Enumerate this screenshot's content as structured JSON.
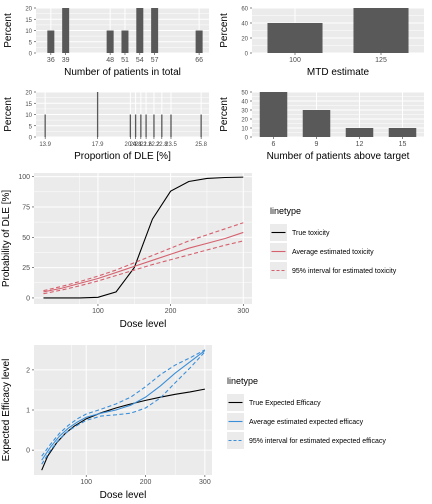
{
  "colors": {
    "panel": "#ebebeb",
    "grid": "#ffffff",
    "bar": "#595959",
    "true": "#000000",
    "red": "#d6606e",
    "blue": "#3a8fd9"
  },
  "chart_data": [
    {
      "id": "patients",
      "type": "bar",
      "xlabel": "Number of patients in total",
      "ylabel": "Percent",
      "xlim": [
        33,
        68
      ],
      "ylim": [
        0,
        20
      ],
      "yticks": [
        0,
        5,
        10,
        15,
        20
      ],
      "xtick_labels": [
        36,
        39,
        48,
        51,
        54,
        57,
        66
      ],
      "x": [
        36,
        39,
        48,
        51,
        54,
        57,
        66
      ],
      "values": [
        10,
        20,
        10,
        10,
        20,
        20,
        10
      ]
    },
    {
      "id": "mtd",
      "type": "bar",
      "xlabel": "MTD estimate",
      "ylabel": "Percent",
      "ylim": [
        0,
        60
      ],
      "yticks": [
        0,
        20,
        40,
        60
      ],
      "categories": [
        "100",
        "125"
      ],
      "values": [
        40,
        60
      ]
    },
    {
      "id": "dle",
      "type": "bar",
      "xlabel": "Proportion of DLE [%]",
      "ylabel": "Percent",
      "xlim": [
        13.2,
        26.4
      ],
      "ylim": [
        0,
        20
      ],
      "yticks": [
        0,
        5,
        10,
        15,
        20
      ],
      "xtick_labels": [
        "13.9",
        "17.9",
        "20.4",
        "20.8",
        "21.2",
        "21.6",
        "22.2",
        "22.8",
        "23.5",
        "25.8"
      ],
      "x": [
        13.9,
        17.9,
        20.4,
        20.8,
        21.2,
        21.6,
        22.2,
        22.8,
        23.5,
        25.8
      ],
      "values": [
        10,
        20,
        10,
        10,
        10,
        10,
        10,
        10,
        10,
        10
      ]
    },
    {
      "id": "above",
      "type": "bar",
      "xlabel": "Number of patients above target",
      "ylabel": "Percent",
      "ylim": [
        0,
        50
      ],
      "yticks": [
        0,
        10,
        20,
        30,
        40,
        50
      ],
      "categories": [
        "6",
        "9",
        "12",
        "15"
      ],
      "values": [
        50,
        30,
        10,
        10
      ]
    },
    {
      "id": "toxicity",
      "type": "line",
      "xlabel": "Dose level",
      "ylabel": "Probability of DLE [%]",
      "xlim": [
        12,
        312
      ],
      "ylim": [
        -5,
        103
      ],
      "xticks": [
        100,
        200,
        300
      ],
      "yticks": [
        0,
        25,
        50,
        75,
        100
      ],
      "legend": {
        "title": "linetype",
        "position": "right"
      },
      "series": [
        {
          "name": "True toxicity",
          "style": "solid",
          "color": "true",
          "x": [
            25,
            50,
            75,
            100,
            125,
            150,
            175,
            200,
            225,
            250,
            275,
            300
          ],
          "y": [
            0,
            0,
            0,
            0.5,
            5,
            25,
            65,
            88,
            96,
            98.5,
            99.3,
            99.6
          ]
        },
        {
          "name": "Average estimated toxicity",
          "style": "solid",
          "color": "red",
          "x": [
            25,
            50,
            75,
            100,
            125,
            150,
            175,
            200,
            225,
            250,
            275,
            300
          ],
          "y": [
            5,
            8,
            12,
            16,
            21,
            26,
            31,
            36,
            41,
            45,
            49,
            54
          ]
        },
        {
          "name": "95% interval for estimated toxicity",
          "style": "dashed",
          "color": "red",
          "x": [
            25,
            50,
            75,
            100,
            125,
            150,
            175,
            200,
            225,
            250,
            275,
            300
          ],
          "y": [
            6,
            9.5,
            13.5,
            18,
            23,
            29,
            35,
            41,
            47,
            52,
            57,
            62
          ]
        },
        {
          "name": "",
          "style": "dashed",
          "color": "red",
          "x": [
            25,
            50,
            75,
            100,
            125,
            150,
            175,
            200,
            225,
            250,
            275,
            300
          ],
          "y": [
            3.5,
            6.5,
            10,
            14,
            18.5,
            23,
            27.5,
            31.5,
            35.5,
            39.5,
            43.5,
            47
          ]
        }
      ]
    },
    {
      "id": "efficacy",
      "type": "line",
      "xlabel": "Dose level",
      "ylabel": "Expected Efficacy level",
      "xlim": [
        12,
        312
      ],
      "ylim": [
        -0.62,
        2.62
      ],
      "xticks": [
        100,
        200,
        300
      ],
      "yticks": [
        0,
        1,
        2
      ],
      "legend": {
        "title": "linetype",
        "position": "right"
      },
      "series": [
        {
          "name": "True Expected Efficacy",
          "style": "solid",
          "color": "true",
          "x": [
            25,
            35,
            50,
            65,
            80,
            100,
            125,
            150,
            175,
            200,
            225,
            250,
            275,
            300
          ],
          "y": [
            -0.5,
            -0.15,
            0.18,
            0.42,
            0.6,
            0.78,
            0.93,
            1.05,
            1.15,
            1.24,
            1.32,
            1.39,
            1.45,
            1.52
          ]
        },
        {
          "name": "Average estimated expected efficacy",
          "style": "solid",
          "color": "blue",
          "x": [
            25,
            40,
            55,
            70,
            85,
            100,
            125,
            150,
            175,
            200,
            225,
            250,
            275,
            300
          ],
          "y": [
            -0.25,
            0.08,
            0.35,
            0.55,
            0.7,
            0.82,
            0.92,
            1.0,
            1.12,
            1.32,
            1.6,
            1.92,
            2.2,
            2.48
          ]
        },
        {
          "name": "95% interval for estimated expected efficacy",
          "style": "dashed",
          "color": "blue",
          "x": [
            25,
            40,
            55,
            70,
            85,
            100,
            125,
            150,
            175,
            200,
            225,
            250,
            275,
            300
          ],
          "y": [
            -0.15,
            0.15,
            0.42,
            0.62,
            0.78,
            0.9,
            1.02,
            1.15,
            1.32,
            1.58,
            1.88,
            2.12,
            2.3,
            2.5
          ]
        },
        {
          "name": "",
          "style": "dashed",
          "color": "blue",
          "x": [
            25,
            40,
            55,
            70,
            85,
            100,
            125,
            150,
            175,
            200,
            225,
            250,
            275,
            300
          ],
          "y": [
            -0.35,
            0.0,
            0.28,
            0.48,
            0.62,
            0.74,
            0.85,
            0.88,
            0.92,
            1.05,
            1.3,
            1.68,
            2.05,
            2.45
          ]
        }
      ]
    }
  ]
}
